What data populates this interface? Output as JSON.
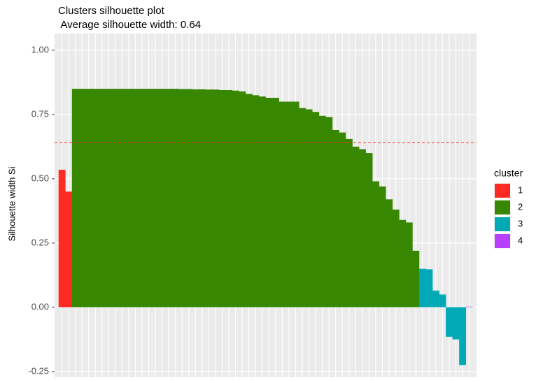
{
  "chart_data": {
    "type": "bar",
    "title": "Clusters silhouette plot",
    "subtitle": " Average silhouette width: 0.64",
    "y_label": "Silhouette width Si",
    "legend_title": "cluster",
    "hline": 0.64,
    "hline_color": "#FF2A2A",
    "series": [
      {
        "name": "1",
        "color": "#FF2A22",
        "values": [
          0.535,
          0.45
        ]
      },
      {
        "name": "2",
        "color": "#378700",
        "values": [
          0.85,
          0.85,
          0.85,
          0.85,
          0.85,
          0.85,
          0.85,
          0.85,
          0.85,
          0.85,
          0.85,
          0.85,
          0.85,
          0.85,
          0.85,
          0.85,
          0.849,
          0.849,
          0.848,
          0.848,
          0.847,
          0.847,
          0.845,
          0.845,
          0.843,
          0.84,
          0.83,
          0.825,
          0.82,
          0.815,
          0.815,
          0.8,
          0.8,
          0.8,
          0.775,
          0.77,
          0.76,
          0.745,
          0.74,
          0.69,
          0.68,
          0.655,
          0.625,
          0.615,
          0.6,
          0.49,
          0.47,
          0.42,
          0.38,
          0.34,
          0.33,
          0.22
        ]
      },
      {
        "name": "3",
        "color": "#00A9B5",
        "values": [
          0.15,
          0.148,
          0.065,
          0.05,
          -0.115,
          -0.125,
          -0.225
        ]
      },
      {
        "name": "4",
        "color": "#B740FF",
        "values": [
          0.002
        ]
      }
    ],
    "ylim": [
      -0.272,
      1.065
    ],
    "yticks": [
      {
        "value": -0.25,
        "label": "-0.25"
      },
      {
        "value": 0,
        "label": "0.00"
      },
      {
        "value": 0.25,
        "label": "0.25"
      },
      {
        "value": 0.5,
        "label": "0.50"
      },
      {
        "value": 0.75,
        "label": "0.75"
      },
      {
        "value": 1,
        "label": "1.00"
      }
    ],
    "grid": true
  }
}
